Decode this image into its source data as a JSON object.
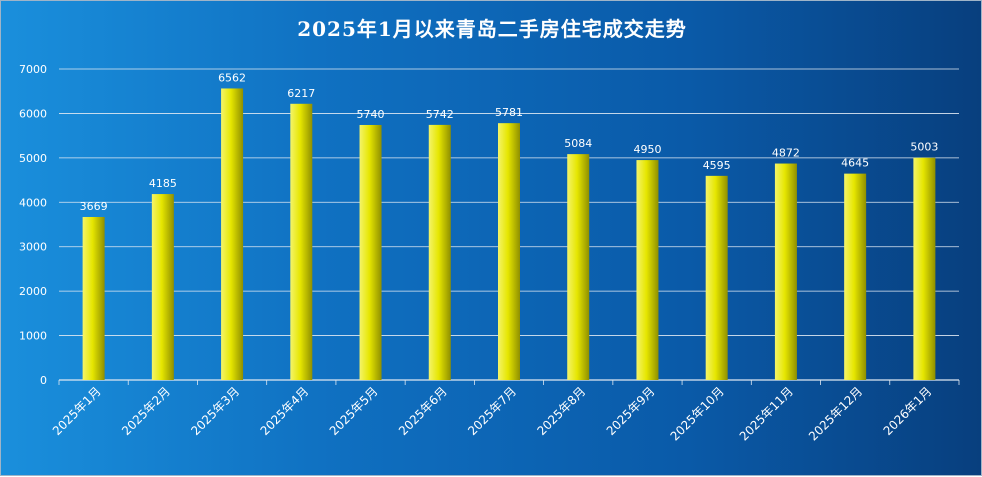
{
  "chart_data": {
    "type": "bar",
    "title": "2025年1月以来青岛二手房住宅成交走势",
    "categories": [
      "2025年1月",
      "2025年2月",
      "2025年3月",
      "2025年4月",
      "2025年5月",
      "2025年6月",
      "2025年7月",
      "2025年8月",
      "2025年9月",
      "2025年10月",
      "2025年11月",
      "2025年12月",
      "2026年1月"
    ],
    "values": [
      3669,
      4185,
      6562,
      6217,
      5740,
      5742,
      5781,
      5084,
      4950,
      4595,
      4872,
      4645,
      5003
    ],
    "ylim": [
      0,
      7000
    ],
    "yticks": [
      0,
      1000,
      2000,
      3000,
      4000,
      5000,
      6000,
      7000
    ],
    "xlabel": "",
    "ylabel": "",
    "grid": true,
    "legend": "none",
    "colors": {
      "bar_light": "#f4f46a",
      "bar_mid": "#e6e600",
      "bar_dark": "#8f8f00",
      "gridline": "#dfe8f2",
      "background_start": "#1a8fdc",
      "background_end": "#083f7e"
    }
  }
}
